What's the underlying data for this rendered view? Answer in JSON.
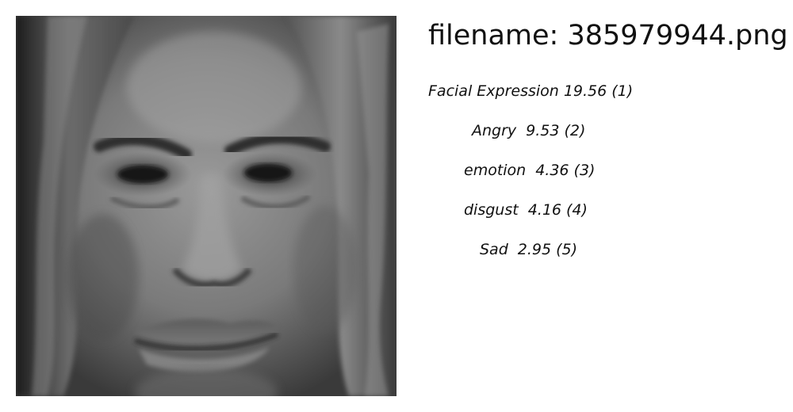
{
  "header": {
    "filename_label": "filename: 385979944.png"
  },
  "image": {
    "subject": "grayscale close-up face photo",
    "tone": "grayscale"
  },
  "results": [
    {
      "label": "Facial Expression",
      "score": "19.56",
      "rank": "(1)"
    },
    {
      "label": "Angry",
      "score": "9.53",
      "rank": "(2)"
    },
    {
      "label": "emotion",
      "score": "4.36",
      "rank": "(3)"
    },
    {
      "label": "disgust",
      "score": "4.16",
      "rank": "(4)"
    },
    {
      "label": "Sad",
      "score": "2.95",
      "rank": "(5)"
    }
  ]
}
